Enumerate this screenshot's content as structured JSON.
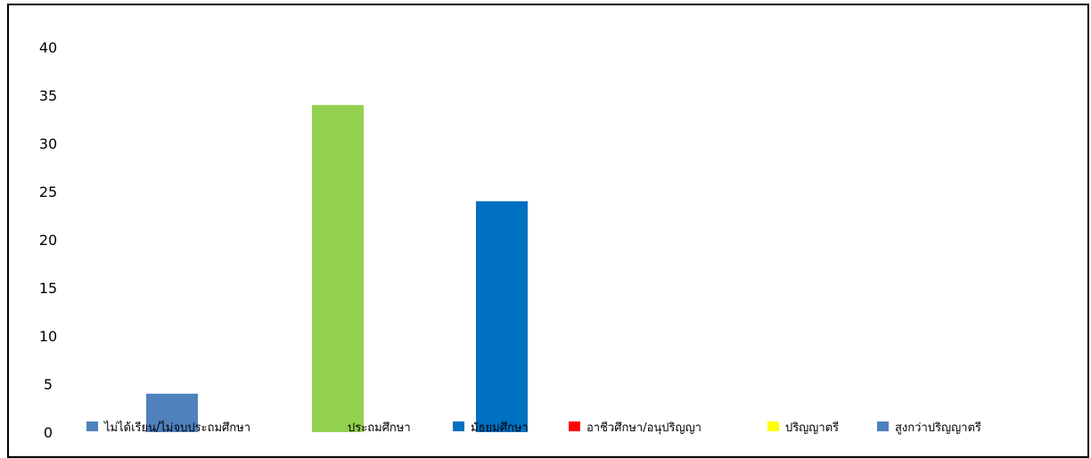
{
  "chart_data": {
    "type": "bar",
    "title": "",
    "xlabel": "",
    "ylabel": "",
    "ylim": [
      0,
      40
    ],
    "yticks": [
      0,
      5,
      10,
      15,
      20,
      25,
      30,
      35,
      40
    ],
    "grid": false,
    "legend_position": "bottom",
    "categories": [
      "ไม่ได้เรียน/ไม่จบประถมศึกษา",
      "ประถมศึกษา",
      "มัธยมศึกษา",
      "อาชีวศึกษา/อนุปริญญา",
      "ปริญญาตรี",
      "สูงกว่าปริญญาตรี"
    ],
    "values": [
      4,
      34,
      24,
      0,
      0,
      0
    ],
    "colors": [
      "#4f81bd",
      "#92d050",
      "#0070c0",
      "#ff0000",
      "#ffff00",
      "#4f81bd"
    ]
  }
}
